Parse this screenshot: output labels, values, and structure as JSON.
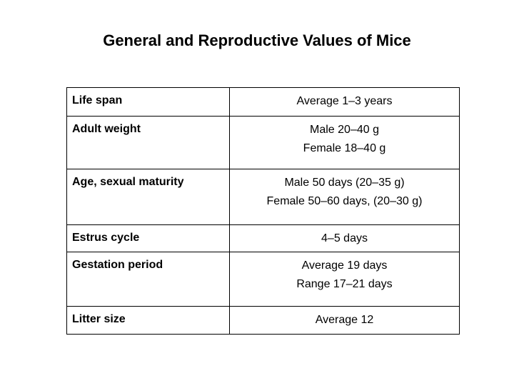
{
  "slide": {
    "title": "General and Reproductive Values of Mice",
    "background_color": "#ffffff",
    "text_color": "#000000",
    "table_border_color": "#000000"
  },
  "table": {
    "rows": [
      {
        "label": "Life span",
        "value_lines": [
          "Average 1–3 years"
        ]
      },
      {
        "label": "Adult weight",
        "value_lines": [
          "Male 20–40 g",
          "Female 18–40 g"
        ]
      },
      {
        "label": "Age, sexual maturity",
        "value_lines": [
          "Male 50 days (20–35 g)",
          "Female 50–60 days, (20–30 g)"
        ]
      },
      {
        "label": "Estrus cycle",
        "value_lines": [
          "4–5 days"
        ]
      },
      {
        "label": "Gestation period",
        "value_lines": [
          "Average 19 days",
          "Range 17–21 days"
        ]
      },
      {
        "label": "Litter size",
        "value_lines": [
          "Average 12"
        ]
      }
    ]
  }
}
